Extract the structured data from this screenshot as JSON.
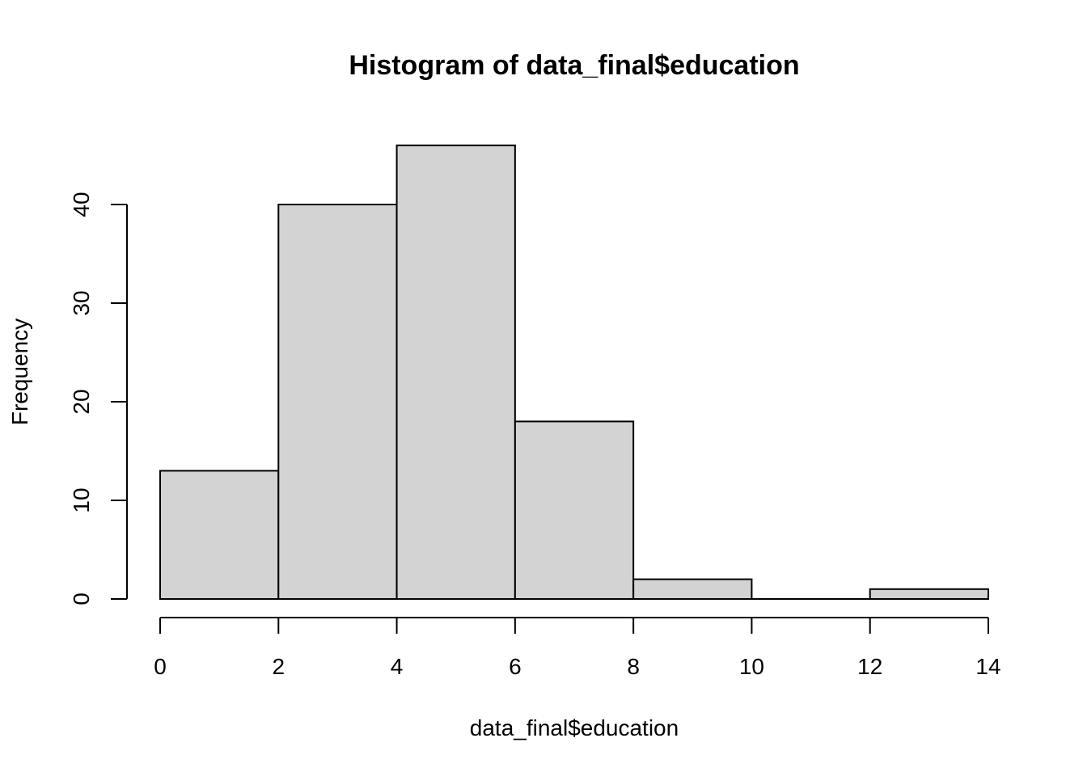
{
  "chart_data": {
    "type": "bar",
    "title": "Histogram of data_final$education",
    "xlabel": "data_final$education",
    "ylabel": "Frequency",
    "bins": [
      {
        "x0": 0,
        "x1": 2,
        "count": 13
      },
      {
        "x0": 2,
        "x1": 4,
        "count": 40
      },
      {
        "x0": 4,
        "x1": 6,
        "count": 46
      },
      {
        "x0": 6,
        "x1": 8,
        "count": 18
      },
      {
        "x0": 8,
        "x1": 10,
        "count": 2
      },
      {
        "x0": 10,
        "x1": 12,
        "count": 0
      },
      {
        "x0": 12,
        "x1": 14,
        "count": 1
      }
    ],
    "x_ticks": [
      "0",
      "2",
      "4",
      "6",
      "8",
      "10",
      "12",
      "14"
    ],
    "y_ticks": [
      "0",
      "10",
      "20",
      "30",
      "40"
    ],
    "xlim": [
      0,
      14
    ],
    "ylim": [
      0,
      46
    ],
    "grid": false,
    "colors": {
      "bar_fill": "#d3d3d3",
      "bar_stroke": "#000000"
    }
  }
}
